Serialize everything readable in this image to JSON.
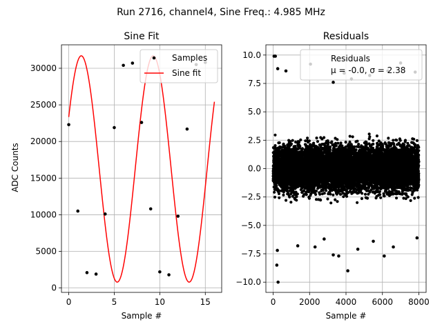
{
  "suptitle": "Run 2716, channel4, Sine Freq.: 4.985 MHz",
  "chart_data": [
    {
      "type": "line",
      "title": "Sine Fit",
      "xlabel": "Sample #",
      "ylabel": "ADC Counts",
      "xlim": [
        -0.8,
        16.8
      ],
      "ylim": [
        -600,
        33200
      ],
      "xticks": [
        0,
        5,
        10,
        15
      ],
      "yticks": [
        0,
        5000,
        10000,
        15000,
        20000,
        25000,
        30000
      ],
      "grid": true,
      "legend": {
        "placement": "top-right",
        "entries": [
          "Samples",
          "Sine fit"
        ]
      },
      "series": [
        {
          "name": "Samples",
          "kind": "scatter",
          "color": "#000000",
          "x": [
            0,
            1,
            2,
            3,
            4,
            5,
            6,
            7,
            8,
            9,
            10,
            11,
            12,
            13,
            14,
            15
          ],
          "y": [
            22300,
            10500,
            2100,
            1900,
            10100,
            21900,
            30400,
            30700,
            22600,
            10800,
            2200,
            1800,
            9800,
            21700,
            30500,
            30800
          ]
        },
        {
          "name": "Sine fit",
          "kind": "line",
          "color": "#ff0000",
          "function": {
            "offset": 16250,
            "amplitude": 15450,
            "period": 7.9,
            "phase_rad": 0.477,
            "x_range": [
              0,
              16
            ]
          }
        }
      ]
    },
    {
      "type": "scatter",
      "title": "Residuals",
      "xlabel": "Sample #",
      "ylabel": "",
      "xlim": [
        -400,
        8400
      ],
      "ylim": [
        -10.9,
        10.9
      ],
      "xticks": [
        0,
        2000,
        4000,
        6000,
        8000
      ],
      "yticks": [
        -10.0,
        -7.5,
        -5.0,
        -2.5,
        0.0,
        2.5,
        5.0,
        7.5,
        10.0
      ],
      "ytick_labels": [
        "−10.0",
        "−7.5",
        "−5.0",
        "−2.5",
        "0.0",
        "2.5",
        "5.0",
        "7.5",
        "10.0"
      ],
      "grid": true,
      "legend": {
        "placement": "top-right",
        "entries": [
          "Residuals",
          "μ = -0.0, σ = 2.38"
        ]
      },
      "series": [
        {
          "name": "Residuals",
          "color": "#000000",
          "n_points": 8000,
          "mean": 0.0,
          "std": 2.38,
          "outliers": [
            [
              50,
              9.9
            ],
            [
              120,
              9.9
            ],
            [
              250,
              8.8
            ],
            [
              700,
              8.6
            ],
            [
              2050,
              9.2
            ],
            [
              3300,
              7.6
            ],
            [
              3900,
              8.4
            ],
            [
              4300,
              7.9
            ],
            [
              5300,
              8.2
            ],
            [
              6300,
              8.6
            ],
            [
              7000,
              9.3
            ],
            [
              7800,
              8.5
            ],
            [
              1350,
              -6.8
            ],
            [
              230,
              -7.2
            ],
            [
              200,
              -8.5
            ],
            [
              270,
              -10.0
            ],
            [
              2300,
              -6.9
            ],
            [
              3300,
              -7.6
            ],
            [
              3600,
              -7.7
            ],
            [
              4100,
              -9.0
            ],
            [
              4650,
              -7.1
            ],
            [
              6100,
              -7.7
            ],
            [
              6600,
              -6.9
            ],
            [
              7900,
              -6.1
            ],
            [
              2800,
              -6.2
            ],
            [
              5500,
              -6.4
            ]
          ]
        }
      ]
    }
  ]
}
